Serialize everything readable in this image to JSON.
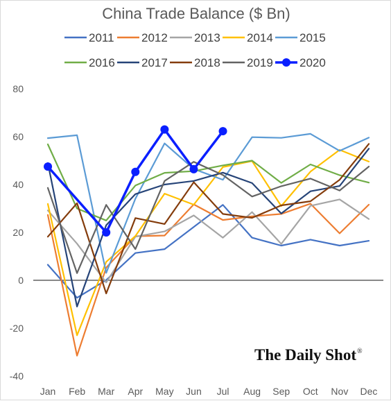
{
  "chart_data": {
    "type": "line",
    "title": "China Trade Balance ($ Bn)",
    "xlabel": "",
    "ylabel": "",
    "categories": [
      "Jan",
      "Feb",
      "Mar",
      "Apr",
      "May",
      "Jun",
      "Jul",
      "Aug",
      "Sep",
      "Oct",
      "Nov",
      "Dec"
    ],
    "ylim": [
      -40,
      80
    ],
    "yticks": [
      80,
      60,
      40,
      20,
      0,
      -20,
      -40
    ],
    "grid": false,
    "legend_position": "top",
    "series": [
      {
        "name": "2011",
        "color": "#4472C4",
        "values": [
          6.5,
          -7.3,
          0.1,
          11.4,
          13.0,
          22.3,
          31.5,
          17.8,
          14.5,
          17.0,
          14.5,
          16.5
        ]
      },
      {
        "name": "2012",
        "color": "#ED7D31",
        "values": [
          27.3,
          -31.5,
          5.3,
          18.4,
          18.7,
          31.7,
          25.2,
          26.7,
          27.7,
          32.0,
          19.6,
          31.6
        ]
      },
      {
        "name": "2013",
        "color": "#A5A5A5",
        "values": [
          29.2,
          15.3,
          -0.9,
          18.2,
          20.4,
          27.1,
          17.8,
          28.5,
          15.2,
          31.1,
          33.8,
          25.6
        ]
      },
      {
        "name": "2014",
        "color": "#FFC000",
        "values": [
          31.9,
          -23.0,
          7.7,
          18.5,
          36.2,
          31.6,
          47.3,
          49.8,
          31.0,
          45.4,
          54.5,
          49.6
        ]
      },
      {
        "name": "2015",
        "color": "#5B9BD5",
        "values": [
          59.4,
          60.6,
          3.1,
          34.1,
          57.2,
          46.5,
          42.0,
          59.8,
          59.5,
          61.2,
          54.1,
          59.6
        ]
      },
      {
        "name": "2016",
        "color": "#70AD47",
        "values": [
          56.8,
          30.0,
          25.0,
          39.6,
          44.9,
          45.6,
          48.0,
          50.0,
          40.7,
          48.4,
          43.9,
          40.8
        ]
      },
      {
        "name": "2017",
        "color": "#264478",
        "values": [
          49.0,
          -11.0,
          23.0,
          36.0,
          40.0,
          41.5,
          45.0,
          40.6,
          27.9,
          37.2,
          39.4,
          55.0
        ]
      },
      {
        "name": "2018",
        "color": "#843C0C",
        "values": [
          18.2,
          32.2,
          -5.5,
          26.0,
          23.5,
          41.0,
          27.7,
          26.1,
          31.3,
          33.0,
          42.0,
          57.0
        ]
      },
      {
        "name": "2019",
        "color": "#636363",
        "values": [
          38.6,
          3.0,
          31.5,
          13.0,
          41.5,
          49.5,
          44.0,
          35.0,
          39.3,
          42.5,
          37.5,
          47.5
        ]
      },
      {
        "name": "2020",
        "color": "#0A1FFF",
        "markers": true,
        "values": [
          47.5,
          null,
          20.0,
          45.3,
          63.0,
          46.4,
          62.3,
          null,
          null,
          null,
          null,
          null
        ]
      }
    ]
  },
  "branding": {
    "text": "The Daily Shot",
    "mark": "®"
  }
}
